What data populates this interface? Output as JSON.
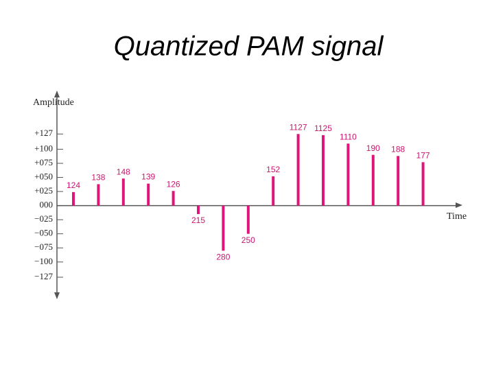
{
  "chart_data": {
    "type": "stem",
    "title": "Quantized PAM signal",
    "y_label": "Amplitude",
    "x_label": "Time",
    "values": [
      24,
      38,
      48,
      39,
      26,
      -15,
      -80,
      -50,
      52,
      127,
      125,
      110,
      90,
      88,
      77
    ],
    "codes": [
      "124",
      "138",
      "148",
      "139",
      "126",
      "215",
      "280",
      "250",
      "152",
      "1127",
      "1125",
      "1110",
      "190",
      "188",
      "177"
    ],
    "color": "#e0157a",
    "ylim": [
      -166,
      204
    ],
    "yticks": [
      {
        "value": 127,
        "label": "+127"
      },
      {
        "value": 100,
        "label": "+100"
      },
      {
        "value": 75,
        "label": "+075"
      },
      {
        "value": 50,
        "label": "+050"
      },
      {
        "value": 25,
        "label": "+025"
      },
      {
        "value": 0,
        "label": "000"
      },
      {
        "value": -25,
        "label": "−025"
      },
      {
        "value": -50,
        "label": "−050"
      },
      {
        "value": -75,
        "label": "−075"
      },
      {
        "value": -100,
        "label": "−100"
      },
      {
        "value": -127,
        "label": "−127"
      }
    ]
  }
}
